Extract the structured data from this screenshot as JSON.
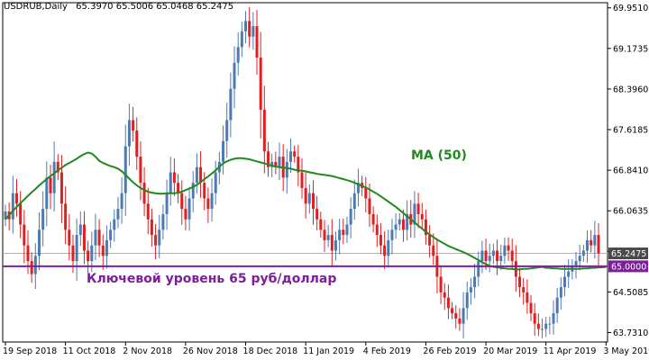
{
  "chart_data": {
    "type": "candlestick",
    "symbol_label": "USDRUB,Daily",
    "ohlc_label": "65.3970 65.5006 65.0468 65.2475",
    "y_ticks": [
      "69.9510",
      "69.1735",
      "68.3960",
      "67.6185",
      "66.8410",
      "66.0635",
      "65.2860",
      "64.5085",
      "63.7310"
    ],
    "y_tick_values": [
      69.951,
      69.1735,
      68.396,
      67.6185,
      66.841,
      66.0635,
      65.286,
      64.5085,
      63.731
    ],
    "ylim": [
      63.55,
      70.05
    ],
    "x_tick_labels": [
      "19 Sep 2018",
      "11 Oct 2018",
      "2 Nov 2018",
      "26 Nov 2018",
      "18 Dec 2018",
      "11 Jan 2019",
      "4 Feb 2019",
      "26 Feb 2019",
      "20 Mar 2019",
      "11 Apr 2019",
      "3 May 2019"
    ],
    "x_tick_index": [
      0,
      16,
      32,
      48,
      64,
      80,
      96,
      112,
      128,
      144,
      160
    ],
    "grid": false,
    "colors": {
      "up": "#4d7ab3",
      "down": "#e02020",
      "ma": "#1f8a1f",
      "key_level": "#7e1e9c",
      "price_label_bg": "#4a4a4a",
      "level_label_bg": "#7e1e9c",
      "axis": "#000000"
    },
    "ma_label": "MA (50)",
    "key_level_value": 65.0,
    "key_level_text": "Ключевой уровень 65 руб/доллар",
    "current_price": 65.2475,
    "price_label": "65.2475",
    "level_label": "65.0000",
    "close": [
      66.05,
      65.9,
      66.4,
      66.2,
      65.8,
      65.4,
      65.1,
      64.85,
      65.2,
      65.7,
      66.1,
      66.7,
      66.4,
      67.0,
      66.8,
      66.2,
      65.7,
      65.4,
      65.1,
      65.6,
      65.8,
      65.3,
      65.1,
      65.4,
      65.7,
      65.4,
      65.2,
      65.5,
      65.7,
      65.9,
      66.1,
      66.4,
      67.3,
      67.8,
      67.6,
      67.1,
      66.6,
      66.2,
      65.9,
      65.6,
      65.4,
      65.7,
      66.0,
      66.4,
      66.8,
      66.6,
      66.4,
      66.1,
      65.9,
      66.3,
      66.6,
      66.9,
      66.6,
      66.3,
      66.1,
      66.4,
      66.8,
      67.0,
      67.4,
      67.8,
      68.4,
      68.9,
      69.2,
      69.5,
      69.7,
      69.4,
      69.6,
      69.0,
      68.0,
      67.2,
      66.9,
      67.0,
      66.9,
      67.1,
      66.7,
      67.0,
      67.2,
      67.1,
      66.8,
      66.5,
      66.2,
      66.4,
      66.1,
      65.9,
      65.7,
      65.5,
      65.6,
      65.3,
      65.5,
      65.7,
      65.6,
      65.8,
      66.1,
      66.4,
      66.6,
      66.5,
      66.3,
      66.0,
      65.8,
      65.6,
      65.4,
      65.2,
      65.5,
      65.7,
      65.8,
      65.9,
      65.7,
      66.0,
      65.8,
      66.2,
      66.0,
      65.9,
      65.6,
      65.4,
      65.2,
      64.8,
      64.5,
      64.4,
      64.2,
      64.1,
      64.0,
      63.9,
      64.2,
      64.5,
      64.6,
      64.8,
      65.1,
      65.3,
      65.1,
      65.2,
      65.3,
      65.1,
      65.2,
      65.4,
      65.3,
      65.1,
      64.8,
      64.6,
      64.5,
      64.3,
      64.1,
      63.9,
      63.8,
      63.8,
      63.9,
      63.9,
      64.1,
      64.4,
      64.6,
      64.8,
      64.9,
      65.0,
      65.1,
      65.2,
      65.3,
      65.5,
      65.4,
      65.6,
      65.2475
    ],
    "ma": [
      65.9,
      65.98,
      66.06,
      66.14,
      66.21,
      66.28,
      66.35,
      66.42,
      66.48,
      66.55,
      66.61,
      66.67,
      66.73,
      66.78,
      66.84,
      66.89,
      66.94,
      66.98,
      67.02,
      67.06,
      67.11,
      67.15,
      67.18,
      67.16,
      67.1,
      67.02,
      66.98,
      66.95,
      66.92,
      66.9,
      66.87,
      66.82,
      66.75,
      66.68,
      66.61,
      66.55,
      66.5,
      66.46,
      66.43,
      66.41,
      66.4,
      66.39,
      66.39,
      66.4,
      66.4,
      66.4,
      66.41,
      66.43,
      66.46,
      66.49,
      66.52,
      66.56,
      66.61,
      66.67,
      66.72,
      66.78,
      66.84,
      66.91,
      66.97,
      67.01,
      67.04,
      67.06,
      67.07,
      67.07,
      67.06,
      67.05,
      67.03,
      67.01,
      66.99,
      66.97,
      66.95,
      66.93,
      66.91,
      66.9,
      66.89,
      66.88,
      66.87,
      66.85,
      66.84,
      66.83,
      66.82,
      66.8,
      66.79,
      66.77,
      66.76,
      66.75,
      66.74,
      66.73,
      66.71,
      66.69,
      66.67,
      66.65,
      66.63,
      66.6,
      66.57,
      66.54,
      66.51,
      66.47,
      66.43,
      66.39,
      66.34,
      66.29,
      66.24,
      66.19,
      66.14,
      66.08,
      66.02,
      65.96,
      65.9,
      65.84,
      65.78,
      65.72,
      65.66,
      65.61,
      65.56,
      65.51,
      65.47,
      65.43,
      65.39,
      65.36,
      65.33,
      65.3,
      65.27,
      65.24,
      65.2,
      65.16,
      65.12,
      65.08,
      65.04,
      65.01,
      64.99,
      64.98,
      64.97,
      64.96,
      64.95,
      64.95,
      64.94,
      64.94,
      64.95,
      64.95,
      64.96,
      64.97,
      64.98,
      64.99,
      64.97,
      64.97,
      64.96,
      64.96,
      64.95,
      64.95,
      64.95,
      64.95,
      64.95,
      64.95,
      64.96,
      64.96,
      64.97,
      64.97,
      64.98,
      64.98,
      64.99
    ]
  }
}
